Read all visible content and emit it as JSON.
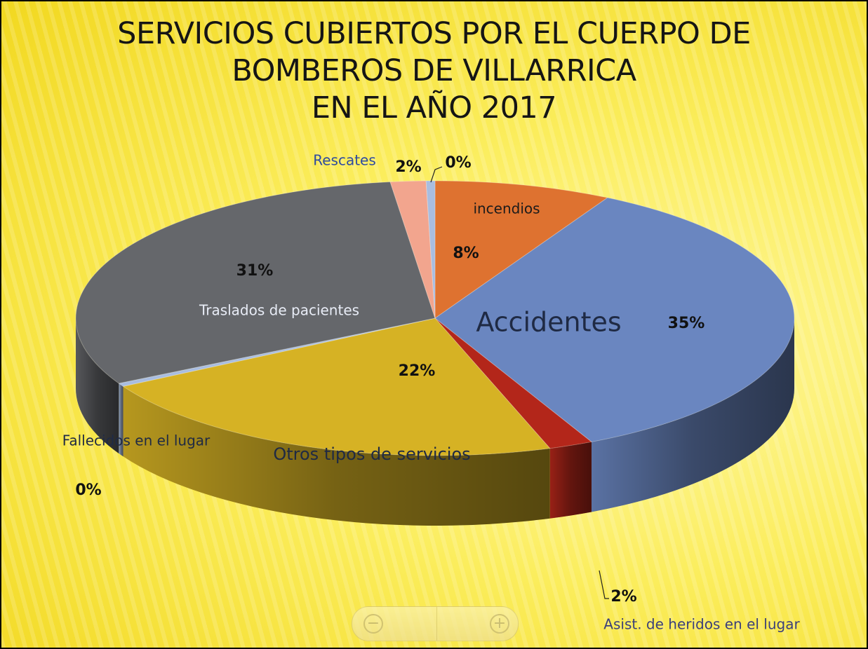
{
  "chart_data": {
    "type": "pie",
    "title_lines": [
      "SERVICIOS CUBIERTOS POR EL CUERPO DE",
      "BOMBEROS DE VILLARRICA",
      "EN EL AÑO 2017"
    ],
    "slices": [
      {
        "label": "incendios",
        "value": 8,
        "pct_label": "8%",
        "color": "#de7230"
      },
      {
        "label": "Accidentes",
        "value": 35,
        "pct_label": "35%",
        "color": "#6a86c0"
      },
      {
        "label": "Asist. de heridos en el lugar",
        "value": 2,
        "pct_label": "2%",
        "color": "#b3261a"
      },
      {
        "label": "Otros tipos de servicios",
        "value": 22,
        "pct_label": "22%",
        "color": "#d6b224"
      },
      {
        "label": "Fallecidos en el lugar",
        "value": 0.4,
        "pct_label": "0%",
        "color": "#a9bde0"
      },
      {
        "label": "Traslados de pacientes",
        "value": 31,
        "pct_label": "31%",
        "color": "#65676b"
      },
      {
        "label": "Rescates",
        "value": 1.6,
        "pct_label": "2%",
        "color": "#f2a58e"
      },
      {
        "label": "",
        "value": 0.4,
        "pct_label": "0%",
        "color": "#a9bde0"
      }
    ]
  },
  "zoom": {
    "out_icon": "zoom-out-icon",
    "in_icon": "zoom-in-icon",
    "out_symbol": "−",
    "in_symbol": "+"
  }
}
